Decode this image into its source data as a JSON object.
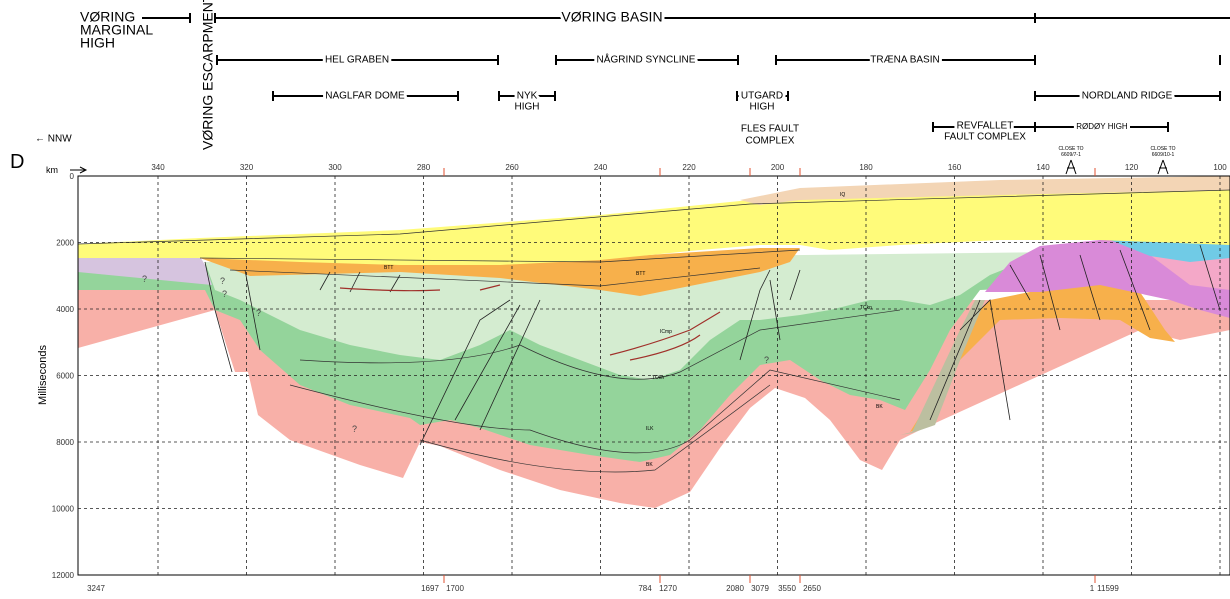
{
  "header": {
    "margin_high": [
      "VØRING",
      "MARGINAL",
      "HIGH"
    ],
    "escarpment": "VØRING ESCARPMENT",
    "basin": "VØRING BASIN",
    "direction": "← NNW",
    "section": "D"
  },
  "provinces": {
    "hel_graben": "HEL GRABEN",
    "nagrind": "NÅGRIND SYNCLINE",
    "traena": "TRÆNA BASIN",
    "naglfar": "NAGLFAR DOME",
    "nyk": [
      "NYK",
      "HIGH"
    ],
    "utgard": [
      "UTGARD",
      "HIGH"
    ],
    "nordland": "NORDLAND RIDGE",
    "fles": [
      "FLES FAULT",
      "COMPLEX"
    ],
    "revfallet": [
      "REVFALLET",
      "FAULT COMPLEX"
    ],
    "rodoy": "RØDØY HIGH"
  },
  "axes": {
    "km_label": "km",
    "km_ticks": [
      340,
      320,
      300,
      280,
      260,
      240,
      220,
      200,
      180,
      160,
      140,
      120,
      100
    ],
    "ms_label": "Milliseconds",
    "ms_ticks": [
      0,
      2000,
      4000,
      6000,
      8000,
      10000,
      12000
    ]
  },
  "shotpoints": [
    "3247",
    "1697",
    "1700",
    "784",
    "1270",
    "2080",
    "3079",
    "3550",
    "2650",
    "1",
    "11599"
  ],
  "wells": [
    [
      "CLOSE TO",
      "6609/7-1"
    ],
    [
      "CLOSE TO",
      "6609/10-1"
    ]
  ],
  "annotations": [
    "?",
    "?",
    "?",
    "?",
    "?",
    "?"
  ],
  "horizons": [
    "IQ",
    "BTT",
    "BTT",
    "TCkn",
    "ICmp",
    "TOkn",
    "ILK",
    "BK",
    "BK"
  ]
}
